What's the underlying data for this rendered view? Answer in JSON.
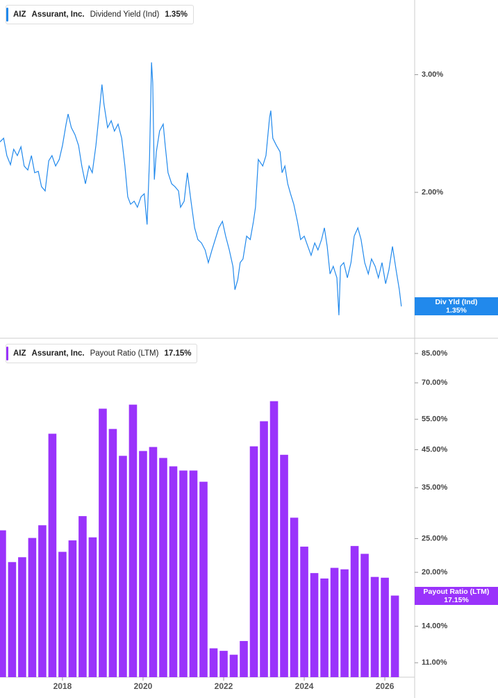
{
  "chart_data": [
    {
      "type": "line",
      "ticker": "AIZ",
      "company": "Assurant, Inc.",
      "title": "Dividend Yield (Ind)",
      "current_value": "1.35%",
      "badge_label": "Div Yld (Ind)",
      "log_scale": true,
      "grid": false,
      "xlim": [
        2016.45,
        2026.74
      ],
      "ylim": [
        1.21,
        3.88
      ],
      "yticks": [
        {
          "value": 3,
          "label": "3.00%"
        },
        {
          "value": 2,
          "label": "2.00%"
        }
      ],
      "x": [
        2016.45,
        2016.54,
        2016.62,
        2016.71,
        2016.79,
        2016.88,
        2016.97,
        2017.05,
        2017.14,
        2017.23,
        2017.31,
        2017.4,
        2017.48,
        2017.57,
        2017.66,
        2017.74,
        2017.83,
        2017.92,
        2018.0,
        2018.09,
        2018.14,
        2018.22,
        2018.31,
        2018.4,
        2018.48,
        2018.57,
        2018.66,
        2018.74,
        2018.83,
        2018.91,
        2018.98,
        2019.03,
        2019.12,
        2019.21,
        2019.29,
        2019.38,
        2019.47,
        2019.55,
        2019.62,
        2019.69,
        2019.78,
        2019.86,
        2019.95,
        2020.03,
        2020.1,
        2020.16,
        2020.21,
        2020.24,
        2020.28,
        2020.33,
        2020.41,
        2020.5,
        2020.55,
        2020.62,
        2020.71,
        2020.79,
        2020.88,
        2020.93,
        2021.02,
        2021.1,
        2021.19,
        2021.28,
        2021.36,
        2021.45,
        2021.54,
        2021.62,
        2021.71,
        2021.79,
        2021.88,
        2021.97,
        2022.05,
        2022.14,
        2022.23,
        2022.28,
        2022.35,
        2022.41,
        2022.48,
        2022.57,
        2022.66,
        2022.74,
        2022.79,
        2022.86,
        2022.97,
        2023.05,
        2023.14,
        2023.17,
        2023.22,
        2023.31,
        2023.4,
        2023.45,
        2023.52,
        2023.59,
        2023.66,
        2023.74,
        2023.83,
        2023.91,
        2024.0,
        2024.09,
        2024.17,
        2024.26,
        2024.34,
        2024.43,
        2024.5,
        2024.57,
        2024.64,
        2024.72,
        2024.81,
        2024.86,
        2024.9,
        2024.98,
        2025.07,
        2025.16,
        2025.24,
        2025.33,
        2025.41,
        2025.5,
        2025.59,
        2025.67,
        2025.76,
        2025.84,
        2025.93,
        2026.02,
        2026.1,
        2026.19,
        2026.28,
        2026.36,
        2026.41
      ],
      "series": [
        {
          "name": "Dividend Yield (Ind)",
          "color": "#2189ec",
          "values": [
            2.38,
            2.41,
            2.27,
            2.2,
            2.32,
            2.27,
            2.34,
            2.19,
            2.16,
            2.27,
            2.14,
            2.15,
            2.04,
            2.01,
            2.23,
            2.27,
            2.19,
            2.24,
            2.35,
            2.53,
            2.62,
            2.5,
            2.44,
            2.35,
            2.19,
            2.06,
            2.19,
            2.14,
            2.35,
            2.62,
            2.9,
            2.71,
            2.5,
            2.56,
            2.47,
            2.53,
            2.41,
            2.19,
            1.97,
            1.92,
            1.94,
            1.9,
            1.97,
            1.99,
            1.79,
            2.24,
            3.13,
            2.92,
            2.09,
            2.3,
            2.47,
            2.53,
            2.35,
            2.14,
            2.06,
            2.04,
            2.01,
            1.9,
            1.94,
            2.14,
            1.94,
            1.77,
            1.7,
            1.68,
            1.64,
            1.57,
            1.64,
            1.7,
            1.77,
            1.81,
            1.72,
            1.64,
            1.55,
            1.43,
            1.48,
            1.57,
            1.59,
            1.72,
            1.7,
            1.81,
            1.9,
            2.24,
            2.19,
            2.27,
            2.59,
            2.65,
            2.41,
            2.35,
            2.3,
            2.14,
            2.19,
            2.06,
            1.99,
            1.92,
            1.81,
            1.7,
            1.72,
            1.66,
            1.61,
            1.68,
            1.64,
            1.7,
            1.77,
            1.66,
            1.51,
            1.55,
            1.49,
            1.31,
            1.55,
            1.57,
            1.49,
            1.57,
            1.72,
            1.77,
            1.7,
            1.57,
            1.51,
            1.59,
            1.55,
            1.49,
            1.57,
            1.46,
            1.53,
            1.66,
            1.53,
            1.43,
            1.35
          ]
        }
      ]
    },
    {
      "type": "bar",
      "ticker": "AIZ",
      "company": "Assurant, Inc.",
      "title": "Payout Ratio (LTM)",
      "current_value": "17.15%",
      "log_scale": true,
      "grid": false,
      "xlim": [
        2016.45,
        2026.74
      ],
      "ylim": [
        10,
        94
      ],
      "xticks": [
        2018,
        2020,
        2022,
        2024,
        2026
      ],
      "yticks": [
        {
          "value": 85,
          "label": "85.00%"
        },
        {
          "value": 70,
          "label": "70.00%"
        },
        {
          "value": 55,
          "label": "55.00%"
        },
        {
          "value": 45,
          "label": "45.00%"
        },
        {
          "value": 35,
          "label": "35.00%"
        },
        {
          "value": 25,
          "label": "25.00%"
        },
        {
          "value": 20,
          "label": "20.00%"
        },
        {
          "value": 14,
          "label": "14.00%"
        },
        {
          "value": 11,
          "label": "11.00%"
        }
      ],
      "x": [
        2016.5,
        2016.75,
        2017,
        2017.25,
        2017.5,
        2017.75,
        2018,
        2018.25,
        2018.5,
        2018.75,
        2019,
        2019.25,
        2019.5,
        2019.75,
        2020,
        2020.25,
        2020.5,
        2020.75,
        2021,
        2021.25,
        2021.5,
        2021.75,
        2022,
        2022.25,
        2022.5,
        2022.75,
        2023,
        2023.25,
        2023.5,
        2023.75,
        2024,
        2024.25,
        2024.5,
        2024.75,
        2025,
        2025.25,
        2025.5,
        2025.75,
        2026,
        2026.25
      ],
      "series": [
        {
          "name": "Payout Ratio (LTM)",
          "color": "#9a33fb",
          "values": [
            26.4,
            21.4,
            22.1,
            25.1,
            27.3,
            50.0,
            22.9,
            24.7,
            29.0,
            25.2,
            59.0,
            51.6,
            43.2,
            60.6,
            44.6,
            45.8,
            42.6,
            40.3,
            39.2,
            39.2,
            36.4,
            12.1,
            11.9,
            11.6,
            12.7,
            46.0,
            54.3,
            62.0,
            43.5,
            28.7,
            23.7,
            19.9,
            19.2,
            20.6,
            20.4,
            23.8,
            22.6,
            19.4,
            19.3,
            17.15
          ]
        }
      ]
    }
  ]
}
